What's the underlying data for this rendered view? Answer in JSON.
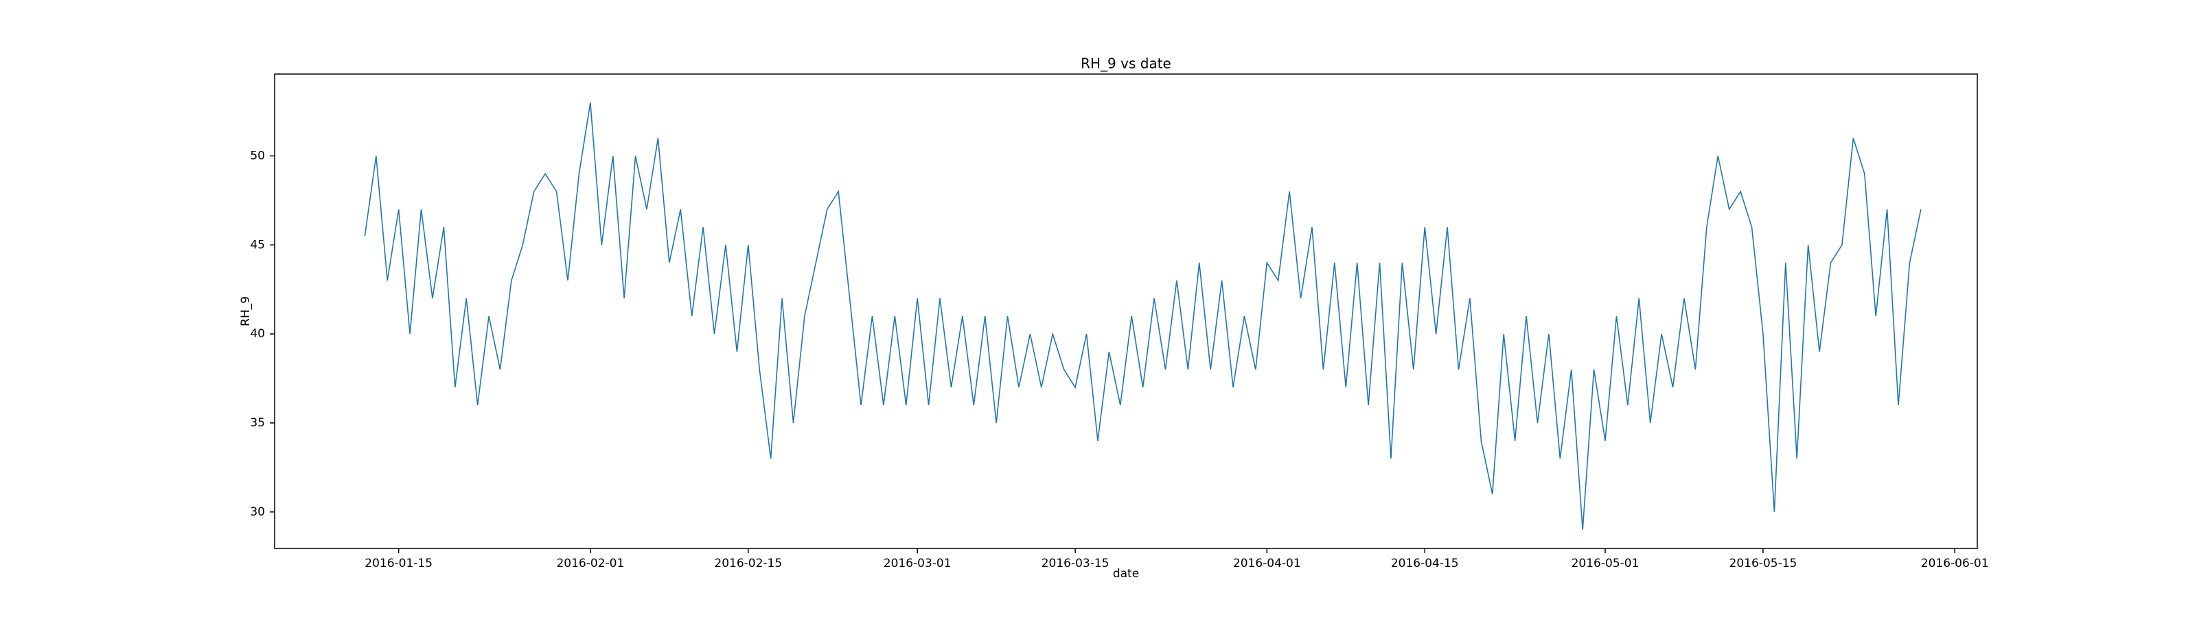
{
  "chart_data": {
    "type": "line",
    "title": "RH_9 vs date",
    "x_label": "date",
    "y_label": "RH_9",
    "x": [
      "2016-01-12",
      "2016-01-13",
      "2016-01-14",
      "2016-01-15",
      "2016-01-16",
      "2016-01-17",
      "2016-01-18",
      "2016-01-19",
      "2016-01-20",
      "2016-01-21",
      "2016-01-22",
      "2016-01-23",
      "2016-01-24",
      "2016-01-25",
      "2016-01-26",
      "2016-01-27",
      "2016-01-28",
      "2016-01-29",
      "2016-01-30",
      "2016-01-31",
      "2016-02-01",
      "2016-02-02",
      "2016-02-03",
      "2016-02-04",
      "2016-02-05",
      "2016-02-06",
      "2016-02-07",
      "2016-02-08",
      "2016-02-09",
      "2016-02-10",
      "2016-02-11",
      "2016-02-12",
      "2016-02-13",
      "2016-02-14",
      "2016-02-15",
      "2016-02-16",
      "2016-02-17",
      "2016-02-18",
      "2016-02-19",
      "2016-02-20",
      "2016-02-21",
      "2016-02-22",
      "2016-02-23",
      "2016-02-24",
      "2016-02-25",
      "2016-02-26",
      "2016-02-27",
      "2016-02-28",
      "2016-02-29",
      "2016-03-01",
      "2016-03-02",
      "2016-03-03",
      "2016-03-04",
      "2016-03-05",
      "2016-03-06",
      "2016-03-07",
      "2016-03-08",
      "2016-03-09",
      "2016-03-10",
      "2016-03-11",
      "2016-03-12",
      "2016-03-13",
      "2016-03-14",
      "2016-03-15",
      "2016-03-16",
      "2016-03-17",
      "2016-03-18",
      "2016-03-19",
      "2016-03-20",
      "2016-03-21",
      "2016-03-22",
      "2016-03-23",
      "2016-03-24",
      "2016-03-25",
      "2016-03-26",
      "2016-03-27",
      "2016-03-28",
      "2016-03-29",
      "2016-03-30",
      "2016-03-31",
      "2016-04-01",
      "2016-04-02",
      "2016-04-03",
      "2016-04-04",
      "2016-04-05",
      "2016-04-06",
      "2016-04-07",
      "2016-04-08",
      "2016-04-09",
      "2016-04-10",
      "2016-04-11",
      "2016-04-12",
      "2016-04-13",
      "2016-04-14",
      "2016-04-15",
      "2016-04-16",
      "2016-04-17",
      "2016-04-18",
      "2016-04-19",
      "2016-04-20",
      "2016-04-21",
      "2016-04-22",
      "2016-04-23",
      "2016-04-24",
      "2016-04-25",
      "2016-04-26",
      "2016-04-27",
      "2016-04-28",
      "2016-04-29",
      "2016-04-30",
      "2016-05-01",
      "2016-05-02",
      "2016-05-03",
      "2016-05-04",
      "2016-05-05",
      "2016-05-06",
      "2016-05-07",
      "2016-05-08",
      "2016-05-09",
      "2016-05-10",
      "2016-05-11",
      "2016-05-12",
      "2016-05-13",
      "2016-05-14",
      "2016-05-15",
      "2016-05-16",
      "2016-05-17",
      "2016-05-18",
      "2016-05-19",
      "2016-05-20",
      "2016-05-21",
      "2016-05-22",
      "2016-05-23",
      "2016-05-24",
      "2016-05-25",
      "2016-05-26",
      "2016-05-27",
      "2016-05-28",
      "2016-05-29"
    ],
    "series": [
      {
        "color": "#1f77b4",
        "values": [
          45.5,
          50,
          43,
          47,
          40,
          47,
          42,
          46,
          37,
          42,
          36,
          41,
          38,
          43,
          45,
          48,
          49,
          48,
          43,
          49,
          53,
          45,
          50,
          42,
          50,
          47,
          51,
          44,
          47,
          41,
          46,
          40,
          45,
          39,
          45,
          38,
          33,
          42,
          35,
          41,
          44,
          47,
          48,
          42,
          36,
          41,
          36,
          41,
          36,
          42,
          36,
          42,
          37,
          41,
          36,
          41,
          35,
          41,
          37,
          40,
          37,
          40,
          38,
          37,
          40,
          34,
          39,
          36,
          41,
          37,
          42,
          38,
          43,
          38,
          44,
          38,
          43,
          37,
          41,
          38,
          44,
          43,
          48,
          42,
          46,
          38,
          44,
          37,
          44,
          36,
          44,
          33,
          44,
          38,
          46,
          40,
          46,
          38,
          42,
          34,
          31,
          40,
          34,
          41,
          35,
          40,
          33,
          38,
          29,
          38,
          34,
          41,
          36,
          42,
          35,
          40,
          37,
          42,
          38,
          46,
          50,
          47,
          48,
          46,
          40,
          30,
          44,
          33,
          45,
          39,
          44,
          45,
          51,
          49,
          41,
          47,
          36,
          44,
          47
        ]
      }
    ],
    "xlim": [
      "2016-01-04",
      "2016-06-03"
    ],
    "ylim": [
      27.95,
      54.6
    ],
    "xticks": [
      "2016-01-15",
      "2016-02-01",
      "2016-02-15",
      "2016-03-01",
      "2016-03-15",
      "2016-04-01",
      "2016-04-15",
      "2016-05-01",
      "2016-05-15",
      "2016-06-01"
    ],
    "yticks": [
      30,
      35,
      40,
      45,
      50
    ]
  }
}
